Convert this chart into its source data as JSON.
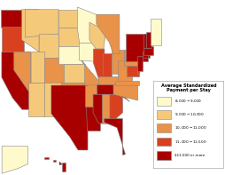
{
  "title": "Average Standardized\nPayment per Stay",
  "legend_labels": [
    "$8,000 - $9,000",
    "$9,000 - $10,000",
    "$10,000 - $11,000",
    "$11,000 - $11,500",
    "$11,500 or more"
  ],
  "legend_colors": [
    "#FEFACC",
    "#F5C97A",
    "#E8924A",
    "#D94020",
    "#A80000"
  ],
  "state_colors": {
    "AL": "#E8924A",
    "AK": "#FEFACC",
    "AZ": "#F5C97A",
    "AR": "#E8924A",
    "CA": "#A80000",
    "CO": "#E8924A",
    "CT": "#A80000",
    "DE": "#D94020",
    "FL": "#A80000",
    "GA": "#D94020",
    "HI": "#A80000",
    "ID": "#F5C97A",
    "IL": "#D94020",
    "IN": "#D94020",
    "IA": "#FEFACC",
    "KS": "#F5C97A",
    "KY": "#E8924A",
    "LA": "#A80000",
    "ME": "#FEFACC",
    "MD": "#D94020",
    "MA": "#A80000",
    "MI": "#E8924A",
    "MN": "#FEFACC",
    "MS": "#A80000",
    "MO": "#E8924A",
    "MT": "#F5C97A",
    "NE": "#FEFACC",
    "NV": "#E8924A",
    "NH": "#A80000",
    "NJ": "#A80000",
    "NM": "#F5C97A",
    "NY": "#A80000",
    "NC": "#E8924A",
    "ND": "#F5C97A",
    "OH": "#E8924A",
    "OK": "#E8924A",
    "OR": "#D94020",
    "PA": "#E8924A",
    "RI": "#A80000",
    "SC": "#D94020",
    "SD": "#F5C97A",
    "TN": "#A80000",
    "TX": "#A80000",
    "UT": "#F5C97A",
    "VT": "#A80000",
    "VA": "#E8924A",
    "WA": "#A80000",
    "WV": "#E8924A",
    "WI": "#F5C97A",
    "WY": "#F5C97A"
  },
  "background_color": "#ffffff",
  "border_color": "#888888",
  "border_lw": 0.4
}
